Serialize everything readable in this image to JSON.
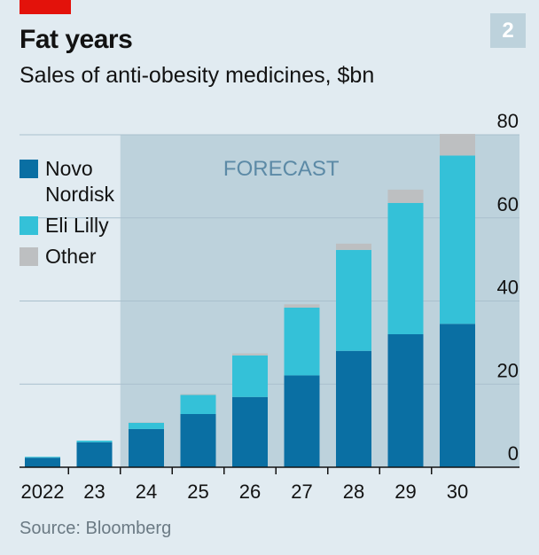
{
  "header": {
    "badge": "2"
  },
  "chart_data": {
    "type": "bar",
    "stacked": true,
    "title": "Fat years",
    "subtitle": "Sales of anti-obesity medicines, $bn",
    "categories": [
      "2022",
      "23",
      "24",
      "25",
      "26",
      "27",
      "28",
      "29",
      "30"
    ],
    "series": [
      {
        "name": "Novo Nordisk",
        "color": "#0a6fa3",
        "values": [
          2.3,
          6,
          9.2,
          12.8,
          16.9,
          22.1,
          28,
          32,
          34.5
        ]
      },
      {
        "name": "Eli Lilly",
        "color": "#34c1d8",
        "values": [
          0.2,
          0.4,
          1.5,
          4.6,
          10,
          16.3,
          24.3,
          31.6,
          40.5
        ]
      },
      {
        "name": "Other",
        "color": "#bdbfc1",
        "values": [
          0,
          0,
          0.1,
          0.2,
          0.5,
          0.8,
          1.5,
          3.2,
          5.2
        ]
      }
    ],
    "yticks": [
      "0",
      "20",
      "40",
      "60",
      "80"
    ],
    "ylim": [
      0,
      80
    ],
    "y_axis_position": "right",
    "grid": true,
    "legend_position": "left",
    "forecast": {
      "label": "FORECAST",
      "from_category": "24",
      "to_category": "30"
    },
    "source": "Source: Bloomberg"
  }
}
